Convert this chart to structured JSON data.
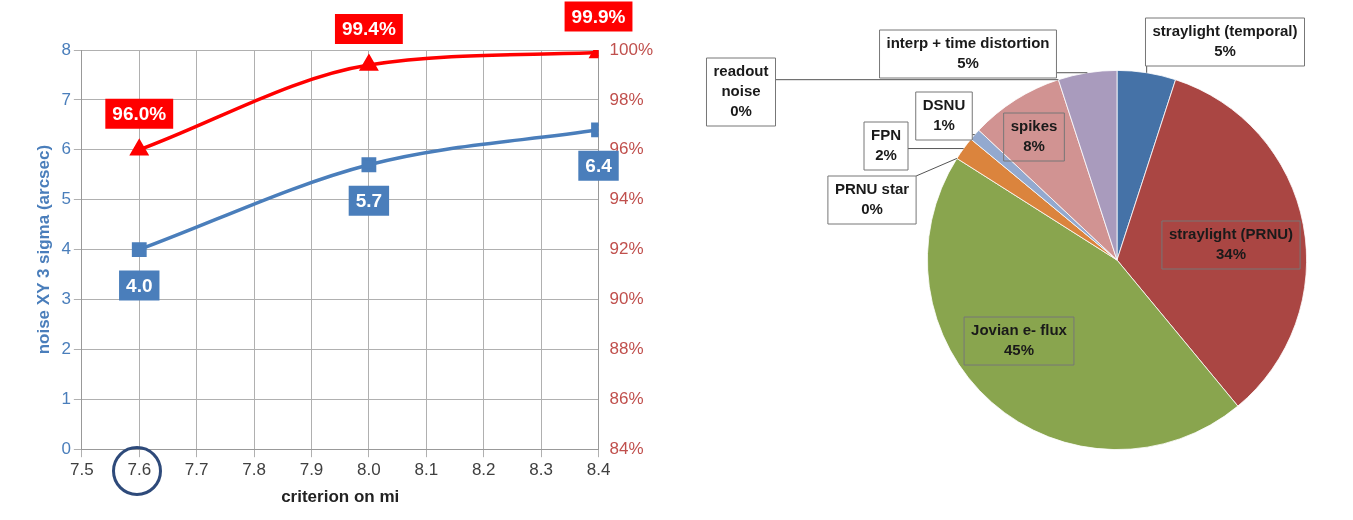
{
  "chart_data": [
    {
      "type": "line",
      "xlabel": "criterion on mi",
      "ylabel": "noise XY 3 sigma (arcsec)",
      "xlim": [
        7.5,
        8.4
      ],
      "xticks": [
        7.5,
        7.6,
        7.7,
        7.8,
        7.9,
        {
          "value": 8,
          "label": "8.0"
        },
        8.1,
        8.2,
        8.3,
        8.4
      ],
      "ylim": [
        0,
        8
      ],
      "yticks": [
        0,
        1,
        2,
        3,
        4,
        5,
        6,
        7,
        8
      ],
      "y2lim": [
        84,
        100
      ],
      "y2ticks": [
        {
          "value": 84,
          "label": "84%"
        },
        {
          "value": 86,
          "label": "86%"
        },
        {
          "value": 88,
          "label": "88%"
        },
        {
          "value": 90,
          "label": "90%"
        },
        {
          "value": 92,
          "label": "92%"
        },
        {
          "value": 94,
          "label": "94%"
        },
        {
          "value": 96,
          "label": "96%"
        },
        {
          "value": 98,
          "label": "98%"
        },
        {
          "value": 100,
          "label": "100%"
        }
      ],
      "grid": true,
      "legend": false,
      "line_style": "solid",
      "series": [
        {
          "x": [
            7.6,
            8.0,
            8.4
          ],
          "values": [
            4.0,
            5.7,
            6.4
          ],
          "color": "#4a7ebb",
          "marker": "square",
          "value_labels": [
            "4.0",
            "5.7",
            "6.4"
          ]
        },
        {
          "x": [
            7.6,
            8.0,
            8.4
          ],
          "values": [
            96.0,
            99.4,
            99.9
          ],
          "color": "#ff0000",
          "marker": "triangle",
          "axis": "y2",
          "value_labels": [
            "96.0%",
            "99.4%",
            "99.9%"
          ]
        }
      ]
    },
    {
      "type": "pie",
      "categories": [
        "straylight (temporal)",
        "straylight (PRNU)",
        "Jovian e- flux",
        "PRNU star",
        "FPN",
        "DSNU",
        "spikes",
        "readout noise",
        "interp + time distortion"
      ],
      "values": [
        5,
        34,
        45,
        0,
        2,
        1,
        8,
        0,
        5
      ],
      "colors": [
        "#4572a7",
        "#aa4643",
        "#89a54e",
        "#4198af",
        "#db843d",
        "#93a9cf",
        "#d19392",
        "#b9cd96",
        "#a99bbd"
      ],
      "value_labels": [
        "5%",
        "34%",
        "45%",
        "0%",
        "2%",
        "1%",
        "8%",
        "0%",
        "5%"
      ]
    }
  ]
}
